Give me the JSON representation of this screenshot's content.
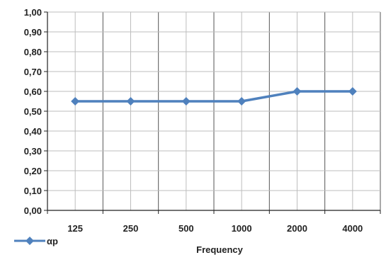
{
  "chart_data": {
    "type": "line",
    "categories": [
      "125",
      "250",
      "500",
      "1000",
      "2000",
      "4000"
    ],
    "series": [
      {
        "name": "αp",
        "values": [
          0.55,
          0.55,
          0.55,
          0.55,
          0.6,
          0.6
        ]
      }
    ],
    "xlabel": "Frequency",
    "ylabel": "",
    "ylim": [
      0,
      1
    ],
    "yticks": [
      "0,00",
      "0,10",
      "0,20",
      "0,30",
      "0,40",
      "0,50",
      "0,60",
      "0,70",
      "0,80",
      "0,90",
      "1,00"
    ],
    "grid": true,
    "legend": "bottom-left",
    "colors": {
      "series": "#4f81bd",
      "major_grid": "#555555",
      "minor_grid": "#bdbdbd",
      "axis": "#222222"
    }
  }
}
